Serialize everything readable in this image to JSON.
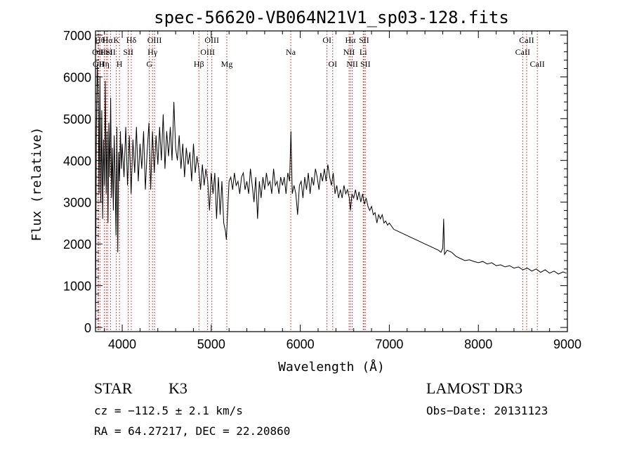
{
  "chart_data": {
    "type": "line",
    "title": "spec-56620-VB064N21V1_sp03-128.fits",
    "xlabel": "Wavelength (Å)",
    "ylabel": "Flux (relative)",
    "xlim": [
      3700,
      9000
    ],
    "ylim": [
      -100,
      7100
    ],
    "x_ticks": [
      4000,
      5000,
      6000,
      7000,
      8000,
      9000
    ],
    "y_ticks": [
      0,
      1000,
      2000,
      3000,
      4000,
      5000,
      6000,
      7000
    ],
    "grid": false,
    "series": [
      {
        "name": "spectrum",
        "points": [
          [
            3700,
            0
          ],
          [
            3710,
            4800
          ],
          [
            3720,
            6300
          ],
          [
            3730,
            5600
          ],
          [
            3740,
            3200
          ],
          [
            3750,
            6000
          ],
          [
            3760,
            3000
          ],
          [
            3770,
            5200
          ],
          [
            3780,
            2600
          ],
          [
            3790,
            4500
          ],
          [
            3800,
            3400
          ],
          [
            3810,
            5900
          ],
          [
            3820,
            3200
          ],
          [
            3830,
            4700
          ],
          [
            3840,
            2500
          ],
          [
            3850,
            4900
          ],
          [
            3860,
            3600
          ],
          [
            3870,
            5500
          ],
          [
            3880,
            3100
          ],
          [
            3890,
            4300
          ],
          [
            3900,
            2800
          ],
          [
            3910,
            4600
          ],
          [
            3920,
            3600
          ],
          [
            3930,
            2200
          ],
          [
            3940,
            4800
          ],
          [
            3950,
            1800
          ],
          [
            3960,
            4200
          ],
          [
            3970,
            3500
          ],
          [
            3980,
            4700
          ],
          [
            3990,
            3800
          ],
          [
            4000,
            4400
          ],
          [
            4020,
            3600
          ],
          [
            4040,
            4800
          ],
          [
            4060,
            3400
          ],
          [
            4080,
            4600
          ],
          [
            4100,
            3200
          ],
          [
            4120,
            4500
          ],
          [
            4140,
            3700
          ],
          [
            4160,
            4800
          ],
          [
            4180,
            3500
          ],
          [
            4200,
            4400
          ],
          [
            4220,
            3800
          ],
          [
            4240,
            4700
          ],
          [
            4260,
            3300
          ],
          [
            4280,
            4200
          ],
          [
            4300,
            4900
          ],
          [
            4320,
            3300
          ],
          [
            4340,
            4700
          ],
          [
            4360,
            3700
          ],
          [
            4380,
            4600
          ],
          [
            4400,
            3900
          ],
          [
            4420,
            4800
          ],
          [
            4440,
            4000
          ],
          [
            4460,
            5100
          ],
          [
            4480,
            3800
          ],
          [
            4500,
            4700
          ],
          [
            4520,
            4100
          ],
          [
            4540,
            4800
          ],
          [
            4560,
            4000
          ],
          [
            4580,
            5400
          ],
          [
            4600,
            4300
          ],
          [
            4620,
            4000
          ],
          [
            4640,
            4600
          ],
          [
            4660,
            3800
          ],
          [
            4680,
            4400
          ],
          [
            4700,
            3600
          ],
          [
            4720,
            4300
          ],
          [
            4740,
            3900
          ],
          [
            4760,
            4200
          ],
          [
            4780,
            3500
          ],
          [
            4800,
            4400
          ],
          [
            4820,
            3700
          ],
          [
            4840,
            4100
          ],
          [
            4860,
            3800
          ],
          [
            4880,
            3300
          ],
          [
            4900,
            3900
          ],
          [
            4920,
            3400
          ],
          [
            4940,
            3800
          ],
          [
            4960,
            3500
          ],
          [
            4980,
            2800
          ],
          [
            5000,
            3700
          ],
          [
            5020,
            3200
          ],
          [
            5040,
            3700
          ],
          [
            5060,
            2600
          ],
          [
            5080,
            3600
          ],
          [
            5100,
            2700
          ],
          [
            5120,
            3500
          ],
          [
            5140,
            2500
          ],
          [
            5160,
            2300
          ],
          [
            5170,
            2100
          ],
          [
            5180,
            2600
          ],
          [
            5200,
            3500
          ],
          [
            5220,
            3600
          ],
          [
            5240,
            3300
          ],
          [
            5260,
            3700
          ],
          [
            5280,
            3400
          ],
          [
            5300,
            3500
          ],
          [
            5320,
            3200
          ],
          [
            5340,
            3600
          ],
          [
            5360,
            3700
          ],
          [
            5380,
            3300
          ],
          [
            5400,
            3500
          ],
          [
            5420,
            3200
          ],
          [
            5440,
            3800
          ],
          [
            5460,
            3400
          ],
          [
            5480,
            3000
          ],
          [
            5500,
            3600
          ],
          [
            5520,
            2600
          ],
          [
            5540,
            3500
          ],
          [
            5560,
            3100
          ],
          [
            5580,
            3600
          ],
          [
            5600,
            3300
          ],
          [
            5620,
            3700
          ],
          [
            5640,
            3400
          ],
          [
            5660,
            3500
          ],
          [
            5680,
            3200
          ],
          [
            5700,
            3800
          ],
          [
            5720,
            3400
          ],
          [
            5740,
            3500
          ],
          [
            5760,
            3200
          ],
          [
            5780,
            3600
          ],
          [
            5800,
            3400
          ],
          [
            5820,
            3600
          ],
          [
            5840,
            3200
          ],
          [
            5860,
            3700
          ],
          [
            5880,
            3500
          ],
          [
            5895,
            4700
          ],
          [
            5910,
            3200
          ],
          [
            5930,
            3400
          ],
          [
            5950,
            3200
          ],
          [
            5970,
            2700
          ],
          [
            5990,
            3400
          ],
          [
            6010,
            3500
          ],
          [
            6030,
            3100
          ],
          [
            6050,
            3600
          ],
          [
            6070,
            3300
          ],
          [
            6090,
            3700
          ],
          [
            6110,
            3200
          ],
          [
            6130,
            3600
          ],
          [
            6150,
            3400
          ],
          [
            6170,
            3800
          ],
          [
            6190,
            3600
          ],
          [
            6210,
            3300
          ],
          [
            6230,
            3700
          ],
          [
            6250,
            3500
          ],
          [
            6270,
            3800
          ],
          [
            6290,
            3500
          ],
          [
            6310,
            3900
          ],
          [
            6330,
            3600
          ],
          [
            6350,
            3400
          ],
          [
            6370,
            3700
          ],
          [
            6390,
            3200
          ],
          [
            6410,
            3400
          ],
          [
            6430,
            3100
          ],
          [
            6450,
            3300
          ],
          [
            6470,
            3100
          ],
          [
            6490,
            3400
          ],
          [
            6510,
            3200
          ],
          [
            6530,
            3300
          ],
          [
            6550,
            3100
          ],
          [
            6563,
            2800
          ],
          [
            6580,
            3200
          ],
          [
            6600,
            3100
          ],
          [
            6620,
            3300
          ],
          [
            6640,
            3050
          ],
          [
            6660,
            3250
          ],
          [
            6680,
            3000
          ],
          [
            6700,
            3200
          ],
          [
            6720,
            2950
          ],
          [
            6740,
            3100
          ],
          [
            6760,
            2900
          ],
          [
            6780,
            2800
          ],
          [
            6800,
            2900
          ],
          [
            6820,
            2700
          ],
          [
            6840,
            2750
          ],
          [
            6860,
            2500
          ],
          [
            6880,
            2700
          ],
          [
            6900,
            2600
          ],
          [
            6920,
            2700
          ],
          [
            6940,
            2500
          ],
          [
            6960,
            2550
          ],
          [
            6980,
            2450
          ],
          [
            7000,
            2500
          ],
          [
            7050,
            2350
          ],
          [
            7100,
            2300
          ],
          [
            7150,
            2250
          ],
          [
            7200,
            2200
          ],
          [
            7250,
            2150
          ],
          [
            7300,
            2100
          ],
          [
            7350,
            2050
          ],
          [
            7400,
            2000
          ],
          [
            7450,
            1950
          ],
          [
            7500,
            1900
          ],
          [
            7550,
            1850
          ],
          [
            7580,
            1800
          ],
          [
            7600,
            1900
          ],
          [
            7610,
            2600
          ],
          [
            7620,
            1750
          ],
          [
            7650,
            1850
          ],
          [
            7700,
            1800
          ],
          [
            7750,
            1700
          ],
          [
            7800,
            1650
          ],
          [
            7850,
            1600
          ],
          [
            7900,
            1620
          ],
          [
            7950,
            1580
          ],
          [
            8000,
            1550
          ],
          [
            8050,
            1580
          ],
          [
            8100,
            1520
          ],
          [
            8150,
            1550
          ],
          [
            8200,
            1480
          ],
          [
            8250,
            1500
          ],
          [
            8300,
            1450
          ],
          [
            8350,
            1480
          ],
          [
            8400,
            1420
          ],
          [
            8450,
            1450
          ],
          [
            8500,
            1380
          ],
          [
            8550,
            1420
          ],
          [
            8600,
            1350
          ],
          [
            8650,
            1400
          ],
          [
            8700,
            1320
          ],
          [
            8750,
            1380
          ],
          [
            8800,
            1300
          ],
          [
            8850,
            1350
          ],
          [
            8900,
            1280
          ],
          [
            8950,
            1330
          ],
          [
            8990,
            1300
          ]
        ]
      }
    ],
    "lines": [
      {
        "wl": 3727,
        "label": "OII",
        "row": 2
      },
      {
        "wl": 3734,
        "label": "OII",
        "row": 3
      },
      {
        "wl": 3750,
        "label": "Hθ",
        "row": 1
      },
      {
        "wl": 3798,
        "label": "Hη",
        "row": 3
      },
      {
        "wl": 3820,
        "label": "HeI",
        "row": 2
      },
      {
        "wl": 3835,
        "label": "Hα",
        "row": 1
      },
      {
        "wl": 3869,
        "label": "SII",
        "row": 2
      },
      {
        "wl": 3934,
        "label": "K",
        "row": 1
      },
      {
        "wl": 3969,
        "label": "H",
        "row": 3
      },
      {
        "wl": 4102,
        "label": "Hδ",
        "row": 1
      },
      {
        "wl": 4068,
        "label": "SII",
        "row": 2
      },
      {
        "wl": 4305,
        "label": "G",
        "row": 3
      },
      {
        "wl": 4340,
        "label": "Hγ",
        "row": 2
      },
      {
        "wl": 4363,
        "label": "OIII",
        "row": 1
      },
      {
        "wl": 4861,
        "label": "Hβ",
        "row": 3
      },
      {
        "wl": 4959,
        "label": "OIII",
        "row": 2
      },
      {
        "wl": 5007,
        "label": "OIII",
        "row": 1
      },
      {
        "wl": 5175,
        "label": "Mg",
        "row": 3
      },
      {
        "wl": 5893,
        "label": "Na",
        "row": 2
      },
      {
        "wl": 6300,
        "label": "OI",
        "row": 1
      },
      {
        "wl": 6364,
        "label": "OI",
        "row": 3
      },
      {
        "wl": 6548,
        "label": "NII",
        "row": 2
      },
      {
        "wl": 6563,
        "label": "Hα",
        "row": 1
      },
      {
        "wl": 6583,
        "label": "NII",
        "row": 3
      },
      {
        "wl": 6707,
        "label": "Li",
        "row": 2
      },
      {
        "wl": 6716,
        "label": "SII",
        "row": 1
      },
      {
        "wl": 6731,
        "label": "SII",
        "row": 3
      },
      {
        "wl": 8498,
        "label": "CaII",
        "row": 2
      },
      {
        "wl": 8542,
        "label": "CaII",
        "row": 1
      },
      {
        "wl": 8662,
        "label": "CaII",
        "row": 3
      }
    ],
    "line_color": "#aa2222"
  },
  "info": {
    "class_label": "STAR",
    "subclass": "K3",
    "survey": "LAMOST DR3",
    "cz": "cz = −112.5 ± 2.1 km/s",
    "obs_date": "Obs−Date: 20131123",
    "coords": "RA =  64.27217, DEC =  22.20860"
  }
}
